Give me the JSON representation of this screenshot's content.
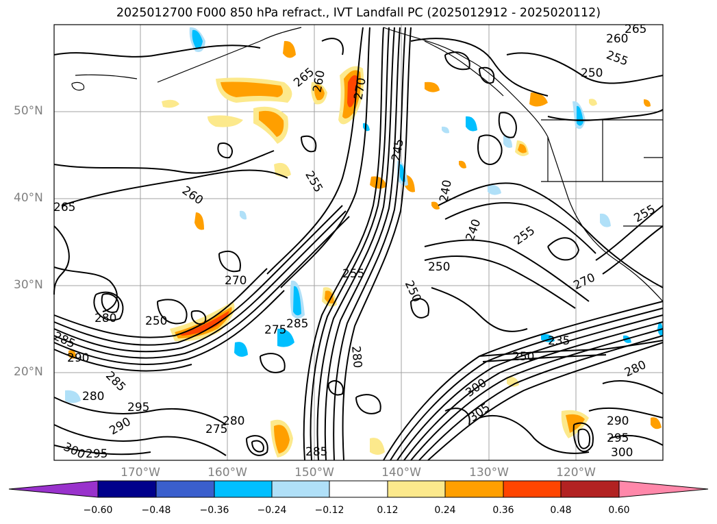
{
  "title": "2025012700 F000 850 hPa refract., IVT Landfall PC (2025012912 - 2025020112)",
  "axes": {
    "lat_ticks": [
      "50°N",
      "40°N",
      "30°N",
      "20°N"
    ],
    "lon_ticks": [
      "170°W",
      "160°W",
      "150°W",
      "140°W",
      "130°W",
      "120°W"
    ]
  },
  "contour_labels": [
    "265",
    "260",
    "255",
    "250",
    "270",
    "245",
    "240",
    "255",
    "250",
    "265",
    "255",
    "260",
    "265",
    "260",
    "255",
    "275",
    "285",
    "270",
    "250",
    "255",
    "240",
    "250",
    "270",
    "235",
    "250",
    "280",
    "280",
    "285",
    "290",
    "300",
    "305",
    "300",
    "290",
    "295",
    "285",
    "280",
    "290",
    "295",
    "300",
    "295",
    "280",
    "285",
    "280",
    "275"
  ],
  "colorbar": {
    "ticks": [
      "−0.60",
      "−0.48",
      "−0.36",
      "−0.24",
      "−0.12",
      "0.12",
      "0.24",
      "0.36",
      "0.48",
      "0.60"
    ],
    "colors": [
      "#9932cc",
      "#00008b",
      "#3a5fcd",
      "#00bfff",
      "#b0e0f8",
      "#ffffff",
      "#fce98c",
      "#ff9f00",
      "#ff4500",
      "#b22222",
      "#ff88aa"
    ]
  }
}
